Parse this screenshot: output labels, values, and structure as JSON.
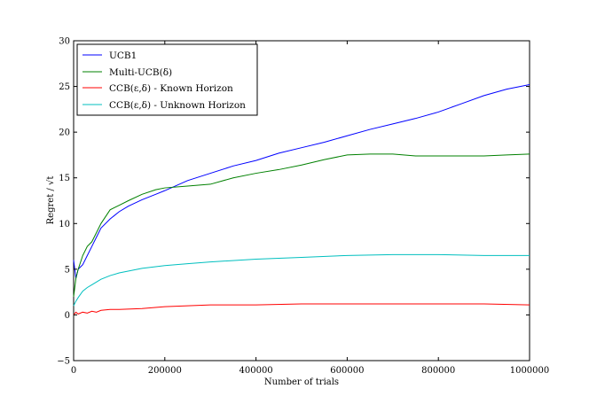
{
  "chart_data": {
    "type": "line",
    "title": "",
    "xlabel": "Number of trials",
    "ylabel": "Regret / √t",
    "xlim": [
      0,
      1000000
    ],
    "ylim": [
      -5,
      30
    ],
    "xticks": [
      0,
      200000,
      400000,
      600000,
      800000,
      1000000
    ],
    "xtick_labels": [
      "0",
      "200000",
      "400000",
      "600000",
      "800000",
      "1000000"
    ],
    "yticks": [
      -5,
      0,
      5,
      10,
      15,
      20,
      25,
      30
    ],
    "ytick_labels": [
      "−5",
      "0",
      "5",
      "10",
      "15",
      "20",
      "25",
      "30"
    ],
    "grid": false,
    "legend_position": "top-left",
    "series": [
      {
        "name": "UCB1",
        "color": "#0000ff",
        "x": [
          0,
          5000,
          10000,
          20000,
          30000,
          40000,
          50000,
          60000,
          80000,
          100000,
          120000,
          150000,
          180000,
          200000,
          250000,
          300000,
          350000,
          400000,
          450000,
          500000,
          550000,
          600000,
          650000,
          700000,
          750000,
          800000,
          850000,
          900000,
          950000,
          1000000
        ],
        "y": [
          6.0,
          4.0,
          5.0,
          5.5,
          6.5,
          7.5,
          8.5,
          9.5,
          10.5,
          11.3,
          11.9,
          12.6,
          13.2,
          13.6,
          14.7,
          15.5,
          16.3,
          16.9,
          17.7,
          18.3,
          18.9,
          19.6,
          20.3,
          20.9,
          21.5,
          22.2,
          23.1,
          24.0,
          24.7,
          25.2
        ]
      },
      {
        "name": "Multi-UCB(δ)",
        "color": "#008000",
        "x": [
          0,
          5000,
          10000,
          20000,
          30000,
          40000,
          50000,
          60000,
          80000,
          100000,
          120000,
          150000,
          180000,
          200000,
          250000,
          300000,
          350000,
          400000,
          450000,
          500000,
          550000,
          600000,
          650000,
          700000,
          750000,
          800000,
          850000,
          900000,
          950000,
          1000000
        ],
        "y": [
          2.0,
          4.0,
          5.0,
          6.5,
          7.5,
          8.0,
          9.0,
          10.0,
          11.5,
          12.0,
          12.5,
          13.2,
          13.7,
          13.9,
          14.1,
          14.3,
          15.0,
          15.5,
          15.9,
          16.4,
          17.0,
          17.5,
          17.6,
          17.6,
          17.4,
          17.4,
          17.4,
          17.4,
          17.5,
          17.6
        ]
      },
      {
        "name": "CCB(ε,δ) - Known Horizon",
        "color": "#ff0000",
        "x": [
          0,
          5000,
          10000,
          20000,
          30000,
          40000,
          50000,
          60000,
          80000,
          100000,
          150000,
          200000,
          300000,
          400000,
          500000,
          600000,
          700000,
          800000,
          900000,
          1000000
        ],
        "y": [
          0.0,
          0.3,
          0.1,
          0.3,
          0.2,
          0.4,
          0.3,
          0.5,
          0.6,
          0.6,
          0.7,
          0.9,
          1.1,
          1.1,
          1.2,
          1.2,
          1.2,
          1.2,
          1.2,
          1.1
        ]
      },
      {
        "name": "CCB(ε,δ) - Unknown Horizon",
        "color": "#00bfbf",
        "x": [
          0,
          5000,
          10000,
          20000,
          30000,
          40000,
          50000,
          60000,
          80000,
          100000,
          150000,
          200000,
          250000,
          300000,
          400000,
          500000,
          600000,
          700000,
          800000,
          900000,
          1000000
        ],
        "y": [
          1.0,
          1.5,
          1.9,
          2.6,
          3.0,
          3.3,
          3.6,
          3.9,
          4.3,
          4.6,
          5.1,
          5.4,
          5.6,
          5.8,
          6.1,
          6.3,
          6.5,
          6.6,
          6.6,
          6.5,
          6.5
        ]
      }
    ],
    "legend_labels": [
      "UCB1",
      "Multi-UCB(δ)",
      "CCB(ε,δ) - Known Horizon",
      "CCB(ε,δ) - Unknown Horizon"
    ]
  }
}
